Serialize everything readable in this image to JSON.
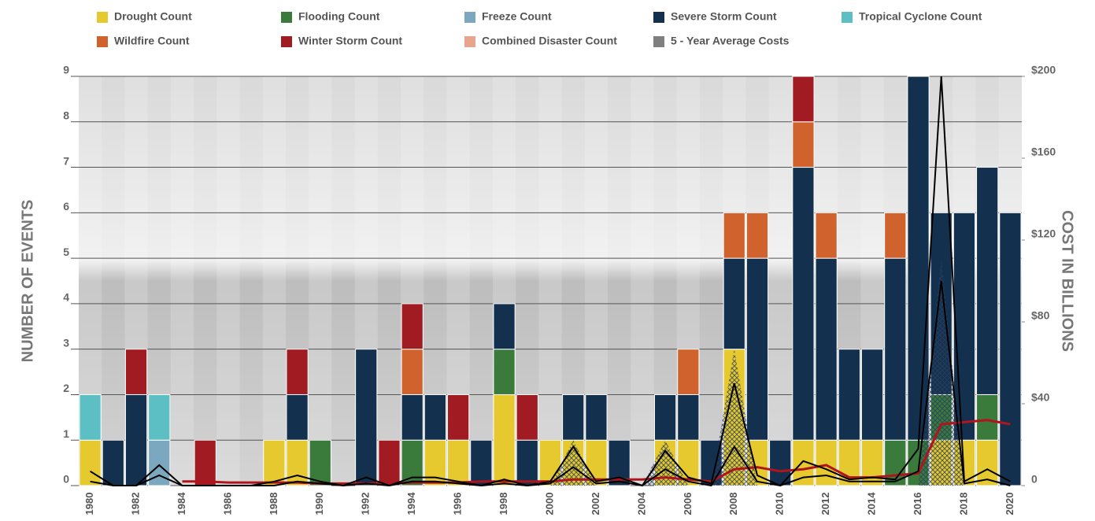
{
  "chart_data": {
    "type": "bar",
    "stacked": true,
    "y_label": "NUMBER OF EVENTS",
    "y2_label": "COST IN BILLIONS",
    "categories": [
      "1980",
      null,
      "1982",
      null,
      "1984",
      null,
      "1986",
      null,
      "1988",
      null,
      "1990",
      null,
      "1992",
      null,
      "1994",
      null,
      "1996",
      null,
      "1998",
      null,
      "2000",
      null,
      "2002",
      null,
      "2004",
      null,
      "2006",
      null,
      "2008",
      null,
      "2010",
      null,
      "2012",
      null,
      "2014",
      null,
      "2016",
      null,
      "2018",
      null,
      "2020"
    ],
    "series": [
      {
        "name": "Drought Count",
        "color": "#e6c92e",
        "values": [
          1,
          0,
          0,
          0,
          0,
          0,
          0,
          0,
          1,
          1,
          0,
          0,
          0,
          0,
          0,
          1,
          1,
          0,
          2,
          0,
          1,
          1,
          1,
          0,
          0,
          1,
          1,
          0,
          3,
          1,
          0,
          1,
          1,
          1,
          1,
          0,
          0,
          1,
          1,
          1,
          0
        ]
      },
      {
        "name": "Flooding Count",
        "color": "#3a7a3a",
        "values": [
          0,
          0,
          0,
          0,
          0,
          0,
          0,
          0,
          0,
          0,
          1,
          0,
          0,
          0,
          1,
          0,
          0,
          0,
          1,
          0,
          0,
          0,
          0,
          0,
          0,
          0,
          0,
          0,
          0,
          0,
          0,
          0,
          0,
          0,
          0,
          1,
          1,
          1,
          0,
          1,
          0
        ]
      },
      {
        "name": "Freeze Count",
        "color": "#7ba7bf",
        "values": [
          0,
          0,
          0,
          1,
          0,
          0,
          0,
          0,
          0,
          0,
          0,
          0,
          0,
          0,
          0,
          0,
          0,
          0,
          0,
          0,
          0,
          0,
          0,
          0,
          0,
          0,
          0,
          0,
          0,
          0,
          0,
          0,
          0,
          0,
          0,
          0,
          0,
          0,
          0,
          0,
          0
        ]
      },
      {
        "name": "Severe Storm Count",
        "color": "#14304f",
        "values": [
          0,
          1,
          2,
          0,
          0,
          0,
          0,
          0,
          0,
          1,
          0,
          0,
          3,
          0,
          1,
          1,
          0,
          1,
          1,
          1,
          0,
          1,
          1,
          1,
          0,
          1,
          1,
          1,
          2,
          4,
          1,
          6,
          4,
          2,
          2,
          4,
          8,
          4,
          5,
          5,
          6
        ]
      },
      {
        "name": "Tropical Cyclone Count",
        "color": "#5bbfc4",
        "values": [
          1,
          0,
          0,
          1,
          0,
          0,
          0,
          0,
          0,
          0,
          0,
          0,
          0,
          0,
          0,
          0,
          0,
          0,
          0,
          0,
          0,
          0,
          0,
          0,
          0,
          0,
          0,
          0,
          0,
          0,
          0,
          0,
          0,
          0,
          0,
          0,
          0,
          0,
          0,
          0,
          0
        ]
      },
      {
        "name": "Wildfire Count",
        "color": "#d0622e",
        "values": [
          0,
          0,
          0,
          0,
          0,
          0,
          0,
          0,
          0,
          0,
          0,
          0,
          0,
          0,
          1,
          0,
          0,
          0,
          0,
          0,
          0,
          0,
          0,
          0,
          0,
          0,
          1,
          0,
          1,
          1,
          0,
          1,
          1,
          0,
          0,
          1,
          0,
          0,
          0,
          0,
          0
        ]
      },
      {
        "name": "Winter Storm Count",
        "color": "#a01c22",
        "values": [
          0,
          0,
          1,
          0,
          0,
          1,
          0,
          0,
          0,
          1,
          0,
          0,
          0,
          1,
          1,
          0,
          1,
          0,
          0,
          1,
          0,
          0,
          0,
          0,
          0,
          0,
          0,
          0,
          0,
          0,
          0,
          1,
          0,
          0,
          0,
          0,
          0,
          0,
          0,
          0,
          0
        ]
      },
      {
        "name": "Combined Disaster Count",
        "type": "area",
        "color": "#e8a58e",
        "values": [
          0,
          0,
          0,
          0,
          0,
          0,
          0,
          0,
          0,
          0,
          0,
          0,
          0,
          0,
          0,
          0,
          0,
          0,
          0,
          0,
          0,
          1,
          0,
          0,
          0,
          1,
          0,
          0,
          3,
          0,
          0,
          0,
          0,
          0,
          0,
          0,
          0,
          5,
          0,
          0,
          0
        ]
      },
      {
        "name": "5 - Year Average Costs",
        "type": "line",
        "axis": "y2",
        "color": "#b0141c",
        "legend_color": "#7f7f7f",
        "values": [
          null,
          null,
          null,
          null,
          2,
          2,
          1.5,
          1.5,
          1.5,
          1.5,
          1,
          1,
          1,
          1,
          1.5,
          1.5,
          1.5,
          2,
          2,
          2,
          2,
          3,
          3,
          3,
          3,
          4,
          3,
          2,
          8,
          9,
          7,
          8,
          10,
          4,
          4,
          5,
          6,
          30,
          31,
          32,
          30
        ]
      },
      {
        "type": "line",
        "axis": "y2",
        "color": "#000000",
        "values": [
          7,
          0,
          0,
          10,
          0,
          0,
          0,
          0,
          2,
          5,
          2,
          0,
          4,
          0,
          4,
          4,
          2,
          0,
          3,
          0,
          2,
          19,
          2,
          4,
          0,
          17,
          4,
          1,
          50,
          5,
          0,
          12,
          8,
          3,
          4,
          3,
          18,
          200,
          2,
          8,
          2
        ]
      },
      {
        "type": "line",
        "axis": "y2",
        "color": "#000000",
        "values": [
          2,
          0,
          0,
          5,
          0,
          0,
          0,
          0,
          0,
          2,
          1,
          0,
          1,
          0,
          2,
          2,
          1,
          0,
          1,
          0,
          1,
          9,
          1,
          2,
          0,
          8,
          2,
          0,
          19,
          2,
          0,
          4,
          5,
          2,
          2,
          2,
          7,
          100,
          1,
          3,
          0
        ]
      }
    ],
    "ylim": [
      0,
      9
    ],
    "yticks": [
      0,
      1,
      2,
      3,
      4,
      5,
      6,
      7,
      8,
      9
    ],
    "y2lim": [
      0,
      200
    ],
    "y2ticks": [
      0,
      {
        "value": 40,
        "label": "$40"
      },
      {
        "value": 80,
        "label": "$80"
      },
      {
        "value": 120,
        "label": "$120"
      },
      {
        "value": 160,
        "label": "$160"
      },
      {
        "value": 200,
        "label": "$200"
      }
    ],
    "grid": true
  }
}
